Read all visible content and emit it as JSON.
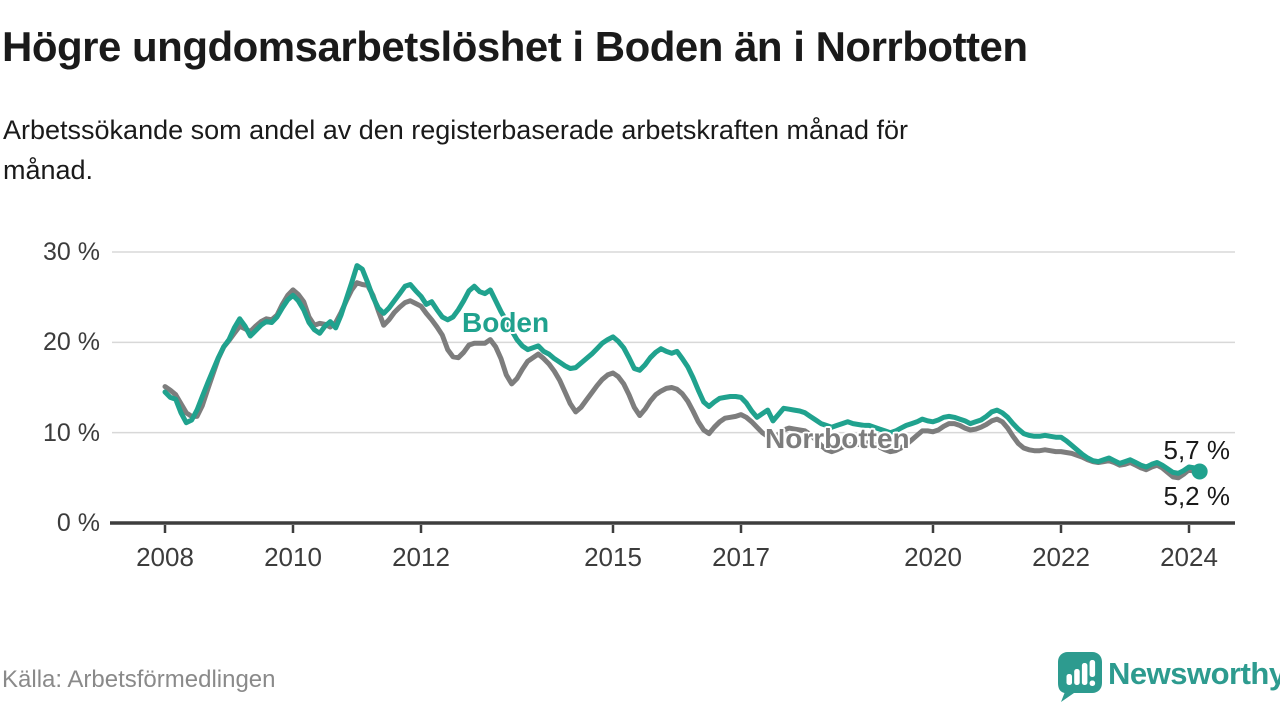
{
  "header": {
    "title": "Högre ungdomsarbetslöshet i Boden än i Norrbotten",
    "subtitle": "Arbetssökande som andel av den registerbaserade arbetskraften månad för\nmånad."
  },
  "footer": {
    "source": "Källa: Arbetsförmedlingen",
    "brand": "Newsworthy"
  },
  "colors": {
    "boden": "#20a28e",
    "norrbotten": "#7d7d7d",
    "grid": "#d8d8d8",
    "axis": "#3d3d3d",
    "title_text": "#1a1a1a",
    "tick_text": "#3c3c3c",
    "muted_text": "#8a8a8a",
    "logo": "#2d9b8f",
    "background": "#ffffff"
  },
  "chart_data": {
    "type": "line",
    "title": "Högre ungdomsarbetslöshet i Boden än i Norrbotten",
    "subtitle": "Arbetssökande som andel av den registerbaserade arbetskraften månad för månad.",
    "unit": "%",
    "grid": "horizontal",
    "legend_position": "inline-labels",
    "x_start": "2008-01",
    "x_end": "2024-03",
    "x_interval": "monthly",
    "start_year": 2008,
    "ylim": [
      0,
      30
    ],
    "y_ticks": [
      {
        "value": 0,
        "label": "0 %"
      },
      {
        "value": 10,
        "label": "10 %"
      },
      {
        "value": 20,
        "label": "20 %"
      },
      {
        "value": 30,
        "label": "30 %"
      }
    ],
    "x_ticks": [
      2008,
      2010,
      2012,
      2015,
      2017,
      2020,
      2022,
      2024
    ],
    "series": [
      {
        "name": "Boden",
        "color": "#20a28e",
        "end_label": "5,7 %",
        "end_value": 5.7,
        "values": [
          14.5,
          13.9,
          13.7,
          12.2,
          11.1,
          11.4,
          12.5,
          14.0,
          15.5,
          16.9,
          18.3,
          19.5,
          20.3,
          21.6,
          22.6,
          21.8,
          20.7,
          21.3,
          21.9,
          22.3,
          22.2,
          22.8,
          23.8,
          24.7,
          25.2,
          24.6,
          23.6,
          22.2,
          21.4,
          21.0,
          21.8,
          22.3,
          21.6,
          23.0,
          24.8,
          26.6,
          28.5,
          28.1,
          26.6,
          25.0,
          23.8,
          23.2,
          23.8,
          24.6,
          25.4,
          26.2,
          26.4,
          25.7,
          25.1,
          24.2,
          24.5,
          23.6,
          22.8,
          22.5,
          22.8,
          23.6,
          24.6,
          25.7,
          26.2,
          25.6,
          25.4,
          25.8,
          24.6,
          23.4,
          22.4,
          21.3,
          20.3,
          19.6,
          19.2,
          19.4,
          19.6,
          19.0,
          18.7,
          18.2,
          17.8,
          17.4,
          17.1,
          17.2,
          17.7,
          18.2,
          18.7,
          19.3,
          19.9,
          20.3,
          20.6,
          20.1,
          19.4,
          18.3,
          17.1,
          16.9,
          17.5,
          18.3,
          18.9,
          19.3,
          19.0,
          18.8,
          19.0,
          18.2,
          17.3,
          16.1,
          14.7,
          13.4,
          12.9,
          13.4,
          13.8,
          13.9,
          14.0,
          14.0,
          13.9,
          13.3,
          12.4,
          11.7,
          12.1,
          12.5,
          11.3,
          12.0,
          12.7,
          12.6,
          12.5,
          12.4,
          12.2,
          11.8,
          11.4,
          11.0,
          10.8,
          10.6,
          10.8,
          11.0,
          11.2,
          11.0,
          10.9,
          10.8,
          10.8,
          10.6,
          10.4,
          10.2,
          10.0,
          10.2,
          10.5,
          10.8,
          11.0,
          11.2,
          11.5,
          11.3,
          11.2,
          11.4,
          11.7,
          11.8,
          11.7,
          11.5,
          11.3,
          11.0,
          11.2,
          11.4,
          11.8,
          12.3,
          12.5,
          12.2,
          11.7,
          11.0,
          10.4,
          9.9,
          9.7,
          9.6,
          9.6,
          9.7,
          9.6,
          9.5,
          9.5,
          9.1,
          8.6,
          8.1,
          7.6,
          7.2,
          6.9,
          6.8,
          7.0,
          7.2,
          6.9,
          6.6,
          6.8,
          7.0,
          6.7,
          6.4,
          6.2,
          6.5,
          6.7,
          6.4,
          6.0,
          5.6,
          5.5,
          5.8,
          6.2,
          6.1,
          5.7
        ]
      },
      {
        "name": "Norrbotten",
        "color": "#7d7d7d",
        "end_label": "5,2 %",
        "end_value": 5.2,
        "values": [
          15.1,
          14.7,
          14.2,
          13.2,
          12.2,
          11.8,
          11.8,
          13.0,
          14.8,
          16.5,
          18.2,
          19.5,
          20.2,
          21.0,
          21.8,
          21.5,
          21.2,
          21.8,
          22.3,
          22.6,
          22.5,
          23.0,
          24.2,
          25.2,
          25.8,
          25.3,
          24.5,
          22.8,
          21.9,
          22.1,
          22.0,
          21.7,
          22.2,
          23.3,
          24.6,
          25.8,
          26.6,
          26.4,
          26.3,
          25.2,
          23.5,
          21.9,
          22.5,
          23.3,
          23.9,
          24.4,
          24.6,
          24.3,
          24.0,
          23.2,
          22.5,
          21.7,
          20.8,
          19.2,
          18.4,
          18.3,
          18.9,
          19.7,
          19.9,
          19.9,
          19.9,
          20.3,
          19.5,
          18.2,
          16.4,
          15.4,
          16.0,
          17.0,
          17.9,
          18.3,
          18.7,
          18.2,
          17.6,
          16.8,
          15.8,
          14.5,
          13.2,
          12.3,
          12.8,
          13.6,
          14.4,
          15.2,
          15.9,
          16.4,
          16.6,
          16.2,
          15.4,
          14.2,
          12.8,
          11.9,
          12.6,
          13.5,
          14.2,
          14.6,
          14.9,
          15.0,
          14.8,
          14.3,
          13.5,
          12.4,
          11.2,
          10.3,
          9.9,
          10.6,
          11.2,
          11.6,
          11.7,
          11.8,
          12.0,
          11.7,
          11.2,
          10.6,
          10.0,
          9.6,
          9.4,
          9.8,
          10.3,
          10.5,
          10.4,
          10.3,
          10.2,
          9.8,
          9.2,
          8.6,
          8.1,
          7.9,
          8.1,
          8.4,
          8.6,
          8.7,
          8.7,
          8.8,
          8.9,
          8.7,
          8.4,
          8.1,
          7.9,
          8.0,
          8.3,
          8.7,
          9.2,
          9.7,
          10.2,
          10.2,
          10.1,
          10.3,
          10.7,
          11.0,
          11.0,
          10.8,
          10.5,
          10.3,
          10.4,
          10.6,
          10.9,
          11.3,
          11.5,
          11.2,
          10.5,
          9.6,
          8.8,
          8.3,
          8.1,
          8.0,
          8.0,
          8.1,
          8.0,
          7.9,
          7.9,
          7.8,
          7.7,
          7.5,
          7.3,
          7.0,
          6.8,
          6.7,
          6.8,
          6.9,
          6.7,
          6.4,
          6.5,
          6.7,
          6.4,
          6.1,
          5.9,
          6.2,
          6.4,
          6.1,
          5.6,
          5.1,
          5.0,
          5.4,
          5.9,
          5.7,
          5.2
        ]
      }
    ]
  }
}
